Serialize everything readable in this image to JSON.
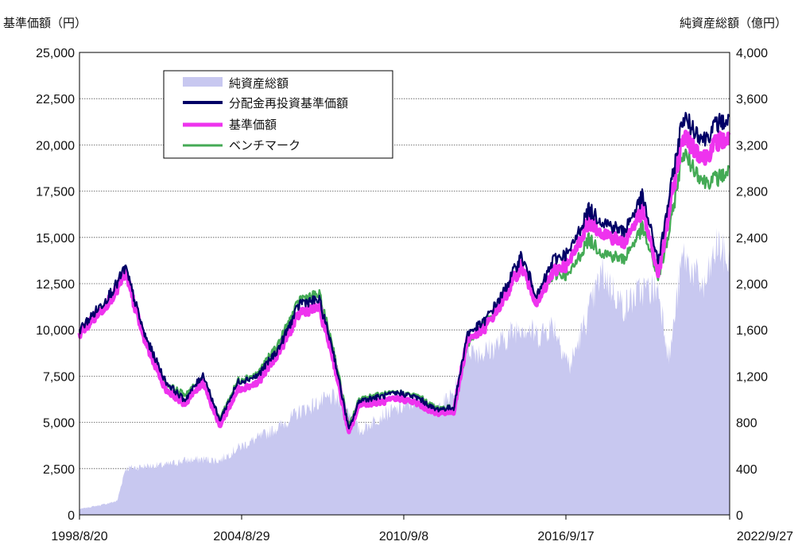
{
  "chart_data": {
    "type": "line",
    "left_axis_label": "基準価額（円）",
    "right_axis_label": "純資産総額（億円）",
    "left_ylim": [
      0,
      25000
    ],
    "right_ylim": [
      0,
      4000
    ],
    "left_ticks": [
      "25,000",
      "22,500",
      "20,000",
      "17,500",
      "15,000",
      "12,500",
      "10,000",
      "7,500",
      "5,000",
      "2,500",
      "0"
    ],
    "right_ticks": [
      "4,000",
      "3,600",
      "3,200",
      "2,800",
      "2,400",
      "2,000",
      "1,600",
      "1,200",
      "800",
      "400",
      "0"
    ],
    "x_ticks": [
      "1998/8/20",
      "2004/8/29",
      "2010/9/8",
      "2016/9/17",
      "2022/9/27"
    ],
    "grid": true,
    "legend_placement": "top-left",
    "x": [
      1998.6,
      1999.5,
      2000.0,
      2000.3,
      2001.0,
      2001.8,
      2002.5,
      2003.2,
      2003.8,
      2004.5,
      2005.2,
      2006.0,
      2006.8,
      2007.5,
      2008.0,
      2008.6,
      2009.0,
      2009.8,
      2010.5,
      2011.2,
      2011.8,
      2012.5,
      2013.0,
      2013.6,
      2014.3,
      2015.0,
      2015.6,
      2016.2,
      2016.8,
      2017.5,
      2018.0,
      2018.8,
      2019.5,
      2020.1,
      2020.5,
      2021.0,
      2021.8,
      2022.3,
      2022.74
    ],
    "series": [
      {
        "name": "純資産総額",
        "color": "#c8c8f0",
        "axis": "right",
        "style": "area",
        "values": [
          50,
          90,
          120,
          400,
          420,
          430,
          470,
          480,
          470,
          580,
          660,
          760,
          900,
          970,
          1020,
          900,
          720,
          860,
          920,
          1000,
          900,
          1050,
          1450,
          1400,
          1500,
          1650,
          1550,
          1650,
          1280,
          1750,
          2100,
          1800,
          1950,
          1950,
          1350,
          2250,
          1950,
          2350,
          2150
        ]
      },
      {
        "name": "分配金再投資基準価額",
        "color": "#000066",
        "axis": "left",
        "style": "line",
        "values": [
          10000,
          11500,
          12500,
          13400,
          9800,
          7200,
          6200,
          7600,
          5100,
          7200,
          7500,
          9000,
          11500,
          11600,
          9000,
          4600,
          6200,
          6400,
          6600,
          6300,
          5700,
          5800,
          9800,
          10400,
          11900,
          14000,
          11800,
          13800,
          14200,
          16500,
          15900,
          15300,
          17200,
          13700,
          17200,
          21500,
          20300,
          21200,
          21300
        ]
      },
      {
        "name": "基準価額",
        "color": "#ee33ee",
        "axis": "left",
        "style": "line",
        "values": [
          9800,
          11200,
          12200,
          13100,
          9500,
          6800,
          6000,
          7200,
          4800,
          6800,
          7100,
          8800,
          11000,
          11200,
          8600,
          4400,
          6000,
          6100,
          6300,
          6000,
          5500,
          5600,
          9500,
          10000,
          11500,
          13500,
          11400,
          13200,
          13600,
          15900,
          15300,
          14700,
          16500,
          13000,
          16500,
          20500,
          19300,
          20200,
          20300
        ]
      },
      {
        "name": "ベンチマーク",
        "color": "#44aa55",
        "axis": "left",
        "style": "line",
        "values": [
          9900,
          11300,
          12300,
          13300,
          9700,
          7100,
          6500,
          7400,
          5200,
          7300,
          7600,
          9300,
          11700,
          11900,
          9200,
          4800,
          6300,
          6500,
          6600,
          6400,
          5800,
          5800,
          9200,
          10200,
          11500,
          13500,
          11500,
          13000,
          13000,
          14900,
          14200,
          13800,
          15500,
          12800,
          15300,
          19600,
          18000,
          18200,
          18600
        ]
      }
    ]
  }
}
